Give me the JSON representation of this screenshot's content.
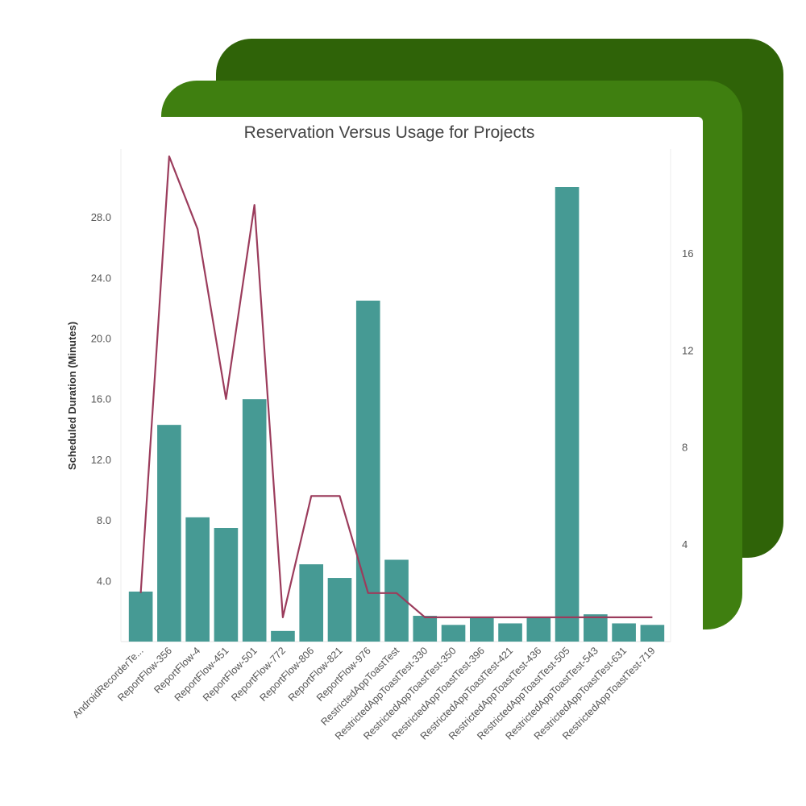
{
  "colors": {
    "card_back": "#2f6308",
    "card_mid": "#3f7f10",
    "bar": "#469a94",
    "line": "#9b3c5c"
  },
  "chart_data": {
    "type": "bar",
    "title": "Reservation Versus Usage for Projects",
    "ylabel": "Scheduled Duration (Minutes)",
    "y2label": "",
    "categories": [
      "AndroidRecorderTe...",
      "ReportFlow-356",
      "ReportFlow-4",
      "ReportFlow-451",
      "ReportFlow-501",
      "ReportFlow-772",
      "ReportFlow-806",
      "ReportFlow-821",
      "ReportFlow-976",
      "RestrictedAppToastTest",
      "RestrictedAppToastTest-330",
      "RestrictedAppToastTest-350",
      "RestrictedAppToastTest-396",
      "RestrictedAppToastTest-421",
      "RestrictedAppToastTest-436",
      "RestrictedAppToastTest-505",
      "RestrictedAppToastTest-543",
      "RestrictedAppToastTest-631",
      "RestrictedAppToastTest-719"
    ],
    "series": [
      {
        "type": "bar",
        "axis": "left",
        "values": [
          3.3,
          14.3,
          8.2,
          7.5,
          16.0,
          0.7,
          5.1,
          4.2,
          22.5,
          5.4,
          1.7,
          1.1,
          1.6,
          1.2,
          1.6,
          30.0,
          1.8,
          1.2,
          1.1
        ]
      },
      {
        "type": "line",
        "axis": "right",
        "values": [
          2,
          20,
          17,
          10,
          18,
          1,
          6,
          6,
          2,
          2,
          1,
          1,
          1,
          1,
          1,
          1,
          1,
          1,
          1
        ]
      }
    ],
    "ylim": [
      0,
      32.5
    ],
    "yticks": [
      "4.0",
      "8.0",
      "12.0",
      "16.0",
      "20.0",
      "24.0",
      "28.0"
    ],
    "y2lim": [
      0,
      20.3
    ],
    "y2ticks": [
      "4",
      "8",
      "12",
      "16"
    ],
    "grid": false,
    "legend": "none"
  }
}
